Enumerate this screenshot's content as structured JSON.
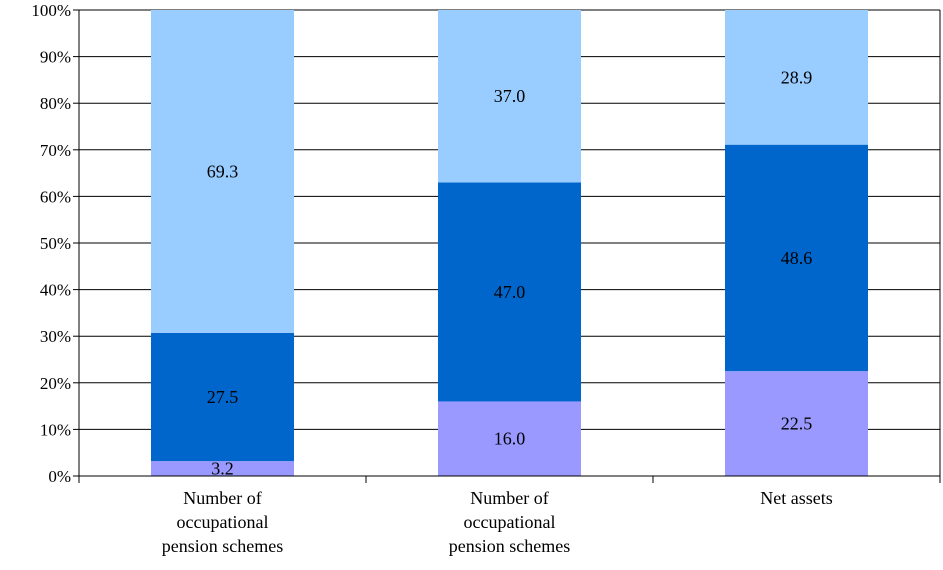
{
  "chart_data": {
    "type": "bar",
    "stacked": true,
    "categories": [
      [
        "Number of",
        "occupational",
        "pension schemes"
      ],
      [
        "Number of",
        "occupational",
        "pension schemes"
      ],
      [
        "Net assets"
      ]
    ],
    "series": [
      {
        "values": [
          3.2,
          16.0,
          22.5
        ],
        "color": "#9999ff"
      },
      {
        "values": [
          27.5,
          47.0,
          48.6
        ],
        "color": "#0066cc"
      },
      {
        "values": [
          69.3,
          37.0,
          28.9
        ],
        "color": "#99ccff"
      }
    ],
    "y_ticks": [
      "0%",
      "10%",
      "20%",
      "30%",
      "40%",
      "50%",
      "60%",
      "70%",
      "80%",
      "90%",
      "100%"
    ],
    "ylim": [
      0,
      100
    ],
    "grid": true,
    "legend": "none"
  }
}
